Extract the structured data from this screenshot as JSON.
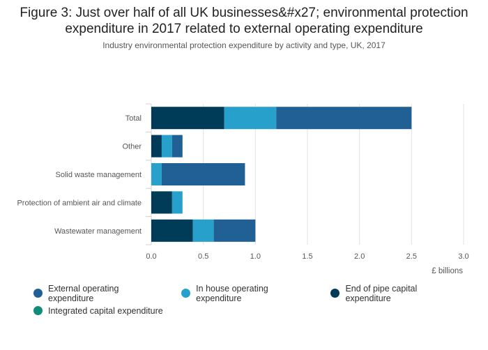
{
  "chart_data": {
    "type": "bar",
    "orientation": "horizontal",
    "stacked": true,
    "title": "Figure 3: Just over half of all UK businesses&#x27; environmental protection expenditure in 2017 related to external operating expenditure",
    "subtitle": "Industry environmental protection expenditure by activity and type, UK, 2017",
    "xlabel": "£ billions",
    "ylabel": "",
    "xlim": [
      0,
      3.0
    ],
    "xticks": [
      "0.0",
      "0.5",
      "1.0",
      "1.5",
      "2.0",
      "2.5",
      "3.0"
    ],
    "categories": [
      "Total",
      "Other",
      "Solid waste management",
      "Protection of ambient air and climate",
      "Wastewater management"
    ],
    "series": [
      {
        "name": "End of pipe capital expenditure",
        "color": "#003c57",
        "values": [
          0.7,
          0.1,
          0.0,
          0.2,
          0.4
        ]
      },
      {
        "name": "In house operating expenditure",
        "color": "#27a0cc",
        "values": [
          0.5,
          0.1,
          0.1,
          0.1,
          0.2
        ]
      },
      {
        "name": "External operating expenditure",
        "color": "#206095",
        "values": [
          1.3,
          0.1,
          0.8,
          0.0,
          0.4
        ]
      },
      {
        "name": "Integrated capital expenditure",
        "color": "#118c7b",
        "values": [
          0.0,
          0.0,
          0.0,
          0.0,
          0.0
        ]
      }
    ],
    "legend": {
      "position": "bottom",
      "order": [
        "External operating expenditure",
        "In house operating expenditure",
        "End of pipe capital expenditure",
        "Integrated capital expenditure"
      ]
    },
    "grid": true
  }
}
